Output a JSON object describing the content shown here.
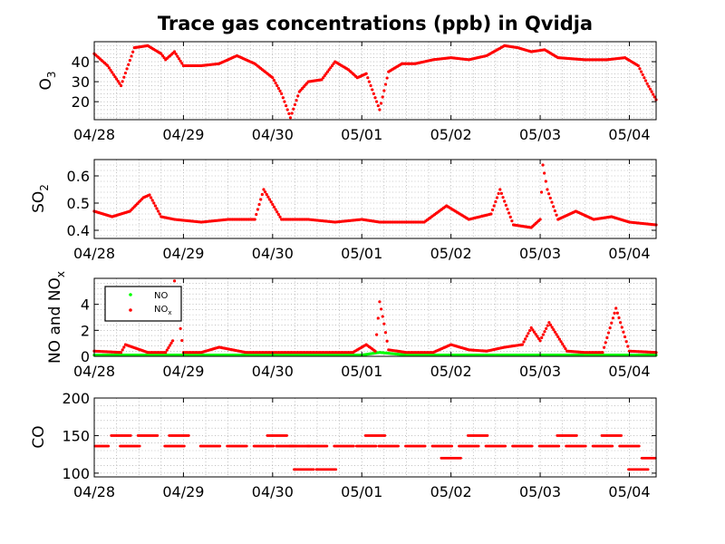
{
  "chart_data": [
    {
      "type": "scatter",
      "title": "Trace gas concentrations (ppb) in Qvidja",
      "ylabel": "O",
      "ylabel_sub": "3",
      "xlim": [
        0,
        6.3
      ],
      "ylim": [
        11,
        50
      ],
      "x_ticks": [
        0,
        1,
        2,
        3,
        4,
        5,
        6
      ],
      "x_tick_labels": [
        "04/28",
        "04/29",
        "04/30",
        "05/01",
        "05/02",
        "05/03",
        "05/04"
      ],
      "y_ticks": [
        20,
        30,
        40
      ],
      "y_tick_labels": [
        "20",
        "30",
        "40"
      ],
      "grid": true,
      "series": [
        {
          "color": "#ff0000",
          "x": [
            0.0,
            0.15,
            0.3,
            0.45,
            0.6,
            0.75,
            0.8,
            0.9,
            1.0,
            1.2,
            1.4,
            1.6,
            1.8,
            2.0,
            2.1,
            2.2,
            2.3,
            2.4,
            2.55,
            2.7,
            2.85,
            2.95,
            3.05,
            3.2,
            3.3,
            3.45,
            3.6,
            3.8,
            4.0,
            4.2,
            4.4,
            4.6,
            4.75,
            4.9,
            5.05,
            5.2,
            5.5,
            5.75,
            5.95,
            6.1,
            6.2,
            6.3
          ],
          "y": [
            44,
            38,
            28,
            47,
            48,
            44,
            41,
            45,
            38,
            38,
            39,
            43,
            39,
            32,
            24,
            12,
            25,
            30,
            31,
            40,
            36,
            32,
            34,
            16,
            35,
            39,
            39,
            41,
            42,
            41,
            43,
            48,
            47,
            45,
            46,
            42,
            41,
            41,
            42,
            38,
            29,
            21
          ]
        }
      ]
    },
    {
      "type": "scatter",
      "ylabel": "SO",
      "ylabel_sub": "2",
      "xlim": [
        0,
        6.3
      ],
      "ylim": [
        0.37,
        0.66
      ],
      "x_ticks": [
        0,
        1,
        2,
        3,
        4,
        5,
        6
      ],
      "x_tick_labels": [
        "04/28",
        "04/29",
        "04/30",
        "05/01",
        "05/02",
        "05/03",
        "05/04"
      ],
      "y_ticks": [
        0.4,
        0.5,
        0.6
      ],
      "y_tick_labels": [
        "0.4",
        "0.5",
        "0.6"
      ],
      "grid": true,
      "series": [
        {
          "color": "#ff0000",
          "x": [
            0.0,
            0.2,
            0.4,
            0.55,
            0.62,
            0.75,
            0.9,
            1.2,
            1.5,
            1.8,
            1.9,
            2.1,
            2.4,
            2.7,
            3.0,
            3.2,
            3.5,
            3.7,
            3.95,
            4.2,
            4.45,
            4.55,
            4.7,
            4.9,
            5.0,
            5.03,
            5.08,
            5.2,
            5.4,
            5.6,
            5.8,
            6.0,
            6.3
          ],
          "y": [
            0.47,
            0.45,
            0.47,
            0.52,
            0.53,
            0.45,
            0.44,
            0.43,
            0.44,
            0.44,
            0.55,
            0.44,
            0.44,
            0.43,
            0.44,
            0.43,
            0.43,
            0.43,
            0.49,
            0.44,
            0.46,
            0.55,
            0.42,
            0.41,
            0.44,
            0.64,
            0.55,
            0.44,
            0.47,
            0.44,
            0.45,
            0.43,
            0.42
          ]
        }
      ]
    },
    {
      "type": "scatter",
      "ylabel": "NO and NO",
      "ylabel_sub": "x",
      "xlim": [
        0,
        6.3
      ],
      "ylim": [
        0,
        6
      ],
      "x_ticks": [
        0,
        1,
        2,
        3,
        4,
        5,
        6
      ],
      "x_tick_labels": [
        "04/28",
        "04/29",
        "04/30",
        "05/01",
        "05/02",
        "05/03",
        "05/04"
      ],
      "y_ticks": [
        0,
        2,
        4
      ],
      "y_tick_labels": [
        "0",
        "2",
        "4"
      ],
      "grid": true,
      "legend": "top-left",
      "legend_entries": [
        {
          "label": "NO",
          "sub": "",
          "color": "#00ff00"
        },
        {
          "label": "NO",
          "sub": "x",
          "color": "#ff0000"
        }
      ],
      "series": [
        {
          "color": "#00ff00",
          "x": [
            0.0,
            0.5,
            1.0,
            1.5,
            2.0,
            2.5,
            3.0,
            3.2,
            3.5,
            4.0,
            4.5,
            5.0,
            5.5,
            6.0,
            6.3
          ],
          "y": [
            0.1,
            0.1,
            0.1,
            0.1,
            0.1,
            0.1,
            0.1,
            0.3,
            0.1,
            0.1,
            0.1,
            0.1,
            0.1,
            0.1,
            0.1
          ]
        },
        {
          "color": "#ff0000",
          "x": [
            0.0,
            0.3,
            0.35,
            0.6,
            0.8,
            0.88,
            0.9,
            1.0,
            1.2,
            1.4,
            1.7,
            2.0,
            2.3,
            2.6,
            2.9,
            3.05,
            3.15,
            3.2,
            3.25,
            3.3,
            3.5,
            3.8,
            4.0,
            4.2,
            4.4,
            4.6,
            4.8,
            4.9,
            5.0,
            5.1,
            5.3,
            5.5,
            5.7,
            5.85,
            6.0,
            6.3
          ],
          "y": [
            0.4,
            0.3,
            0.9,
            0.3,
            0.3,
            1.2,
            5.8,
            0.3,
            0.3,
            0.7,
            0.3,
            0.3,
            0.3,
            0.3,
            0.3,
            0.9,
            0.4,
            4.2,
            2.5,
            0.5,
            0.3,
            0.3,
            0.9,
            0.5,
            0.4,
            0.7,
            0.9,
            2.2,
            1.2,
            2.6,
            0.4,
            0.3,
            0.3,
            3.7,
            0.4,
            0.3
          ]
        }
      ]
    },
    {
      "type": "scatter",
      "ylabel": "CO",
      "ylabel_sub": "",
      "xlim": [
        0,
        6.3
      ],
      "ylim": [
        95,
        200
      ],
      "x_ticks": [
        0,
        1,
        2,
        3,
        4,
        5,
        6
      ],
      "x_tick_labels": [
        "04/28",
        "04/29",
        "04/30",
        "05/01",
        "05/02",
        "05/03",
        "05/04"
      ],
      "y_ticks": [
        100,
        150,
        200
      ],
      "y_tick_labels": [
        "100",
        "150",
        "200"
      ],
      "grid": true,
      "series": [
        {
          "color": "#ff0000",
          "x": [
            0.05,
            0.4,
            0.9,
            1.3,
            1.6,
            1.9,
            2.15,
            2.3,
            2.5,
            2.8,
            3.05,
            3.3,
            3.6,
            3.9,
            4.2,
            4.5,
            4.8,
            5.1,
            5.4,
            5.7,
            6.0,
            6.25,
            0.3,
            0.6,
            0.95,
            2.05,
            2.35,
            2.6,
            3.15,
            4.0,
            4.3,
            5.3,
            5.8,
            6.1
          ],
          "y": [
            136,
            136,
            136,
            136,
            136,
            136,
            136,
            136,
            136,
            136,
            136,
            136,
            136,
            136,
            136,
            136,
            136,
            136,
            136,
            136,
            136,
            120,
            150,
            150,
            150,
            150,
            105,
            105,
            150,
            120,
            150,
            150,
            150,
            105
          ]
        }
      ]
    }
  ]
}
